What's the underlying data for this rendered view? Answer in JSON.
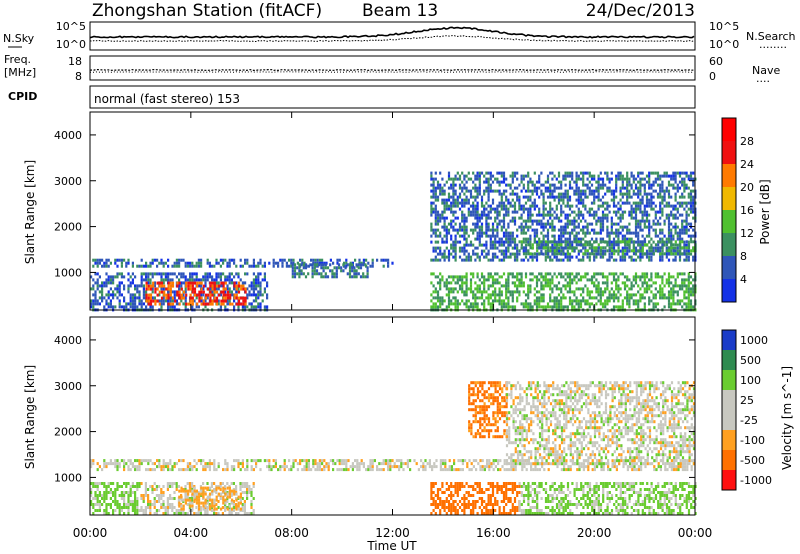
{
  "header": {
    "title": "Zhongshan Station (fitACF)",
    "beam": "Beam 13",
    "date": "24/Dec/2013"
  },
  "noise_panel": {
    "left_label": "N.Sky",
    "left_ticks": [
      "10^5",
      "10^0"
    ],
    "right_ticks": [
      "10^5",
      "10^0"
    ],
    "right_label": "N.Search",
    "right_legend_dots": "........"
  },
  "freq_panel": {
    "left_label_1": "Freq.",
    "left_label_2": "[MHz]",
    "left_ticks": [
      "18",
      "8"
    ],
    "right_ticks": [
      "60",
      "0"
    ],
    "right_label": "Nave",
    "right_legend_dots": "...."
  },
  "cpid": {
    "label": "CPID",
    "text": "normal (fast stereo) 153"
  },
  "axes": {
    "ylabel": "Slant Range [km]",
    "yticks": [
      "4000",
      "3000",
      "2000",
      "1000"
    ],
    "xlabel": "Time UT",
    "xticks": [
      "00:00",
      "04:00",
      "08:00",
      "12:00",
      "16:00",
      "20:00",
      "00:00"
    ]
  },
  "colors": {
    "p4": "#1432e6",
    "p8": "#2f56b8",
    "p12": "#3b9060",
    "p16": "#50c030",
    "p20": "#f0b800",
    "p24": "#ff7a00",
    "p28": "#f01010",
    "ptop": "#ff0000",
    "v1000": "#1a3cc8",
    "v500": "#2f8b50",
    "v100": "#6acc30",
    "v25": "#c8c8c0",
    "vm25": "#c8c8c0",
    "vm100": "#ffa020",
    "vm500": "#ff7000",
    "vm1000": "#ff1010"
  },
  "chart_data": [
    {
      "type": "heatmap",
      "panel": "power",
      "x_range_hours_UT": [
        0,
        24
      ],
      "y_range_km": [
        180,
        4500
      ],
      "colorbar": {
        "label": "Power [dB]",
        "ticks": [
          "28",
          "24",
          "20",
          "16",
          "12",
          "8",
          "4"
        ],
        "range": [
          0,
          32
        ]
      },
      "echo_regions": [
        {
          "t0": 0.0,
          "t1": 7.0,
          "r0": 180,
          "r1": 1000,
          "level": 8
        },
        {
          "t0": 2.2,
          "t1": 6.2,
          "r0": 280,
          "r1": 800,
          "level": 26
        },
        {
          "t0": 0.0,
          "t1": 12.0,
          "r0": 1150,
          "r1": 1300,
          "level": 8
        },
        {
          "t0": 8.0,
          "t1": 11.0,
          "r0": 900,
          "r1": 1200,
          "level": 10
        },
        {
          "t0": 13.5,
          "t1": 24.0,
          "r0": 180,
          "r1": 1000,
          "level": 14
        },
        {
          "t0": 13.5,
          "t1": 24.0,
          "r0": 1300,
          "r1": 3200,
          "level": 9
        },
        {
          "t0": 17.0,
          "t1": 24.0,
          "r0": 1400,
          "r1": 1700,
          "level": 12
        }
      ]
    },
    {
      "type": "heatmap",
      "panel": "velocity",
      "x_range_hours_UT": [
        0,
        24
      ],
      "y_range_km": [
        180,
        4500
      ],
      "colorbar": {
        "label": "Velocity [m s^-1]",
        "ticks": [
          "1000",
          "500",
          "100",
          "25",
          "-25",
          "-100",
          "-500",
          "-1000"
        ]
      },
      "echo_regions": [
        {
          "t0": 0.0,
          "t1": 2.0,
          "r0": 180,
          "r1": 900,
          "velocity": 100
        },
        {
          "t0": 2.0,
          "t1": 6.5,
          "r0": 180,
          "r1": 900,
          "velocity": 0
        },
        {
          "t0": 3.5,
          "t1": 6.0,
          "r0": 300,
          "r1": 800,
          "velocity": -100
        },
        {
          "t0": 0.0,
          "t1": 24.0,
          "r0": 1150,
          "r1": 1400,
          "velocity": 0
        },
        {
          "t0": 13.5,
          "t1": 17.0,
          "r0": 180,
          "r1": 900,
          "velocity": -500
        },
        {
          "t0": 15.0,
          "t1": 16.5,
          "r0": 1900,
          "r1": 3100,
          "velocity": -300
        },
        {
          "t0": 17.0,
          "t1": 24.0,
          "r0": 180,
          "r1": 900,
          "velocity": 100
        },
        {
          "t0": 16.5,
          "t1": 24.0,
          "r0": 1300,
          "r1": 3100,
          "velocity": 0
        }
      ]
    }
  ]
}
